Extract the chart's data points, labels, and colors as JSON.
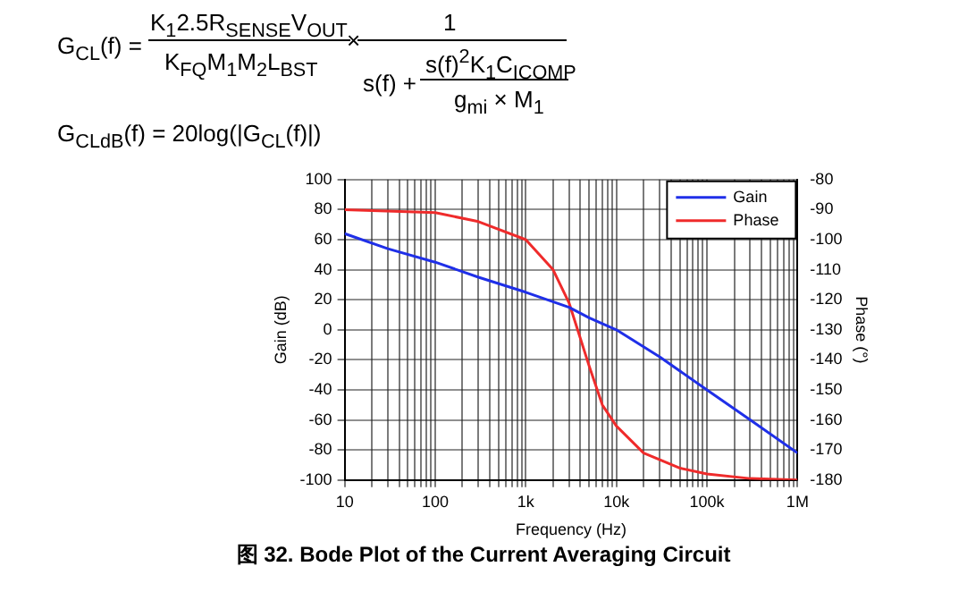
{
  "chart_data": {
    "type": "line",
    "title": "图 32. Bode Plot of the Current Averaging Circuit",
    "annotations": [
      "G$_{CL}$(f) =",
      "K$_{1}$2.5R$_{SENSE}$V$_{OUT}$",
      "K$_{FQ}$M$_{1}$M$_{2}$L$_{BST}$",
      "×",
      "1",
      "s(f) +",
      "s(f)$^{2}$K$_{1}$C$_{ICOMP}$",
      "g$_{mi}$ × M$_{1}$",
      "G$_{CLdB}$(f) = 20log(|G$_{CL}$(f)|)"
    ],
    "xlabel": "Frequency (Hz)",
    "ylabel": "Gain (dB)",
    "y2label": "Phase (°)",
    "log": "x",
    "grid": true,
    "legend": "top right",
    "xlim": [
      10,
      1000000
    ],
    "xticks": [
      10,
      {
        "value": 20,
        "label": null
      },
      {
        "value": 30,
        "label": null
      },
      {
        "value": 40,
        "label": null
      },
      {
        "value": 50,
        "label": null
      },
      {
        "value": 60,
        "label": null
      },
      {
        "value": 70,
        "label": null
      },
      {
        "value": 80,
        "label": null
      },
      {
        "value": 90,
        "label": null
      },
      100,
      {
        "value": 200,
        "label": null
      },
      {
        "value": 300,
        "label": null
      },
      {
        "value": 400,
        "label": null
      },
      {
        "value": 500,
        "label": null
      },
      {
        "value": 600,
        "label": null
      },
      {
        "value": 700,
        "label": null
      },
      {
        "value": 800,
        "label": null
      },
      {
        "value": 900,
        "label": null
      },
      {
        "value": 1000,
        "label": "1k"
      },
      {
        "value": 2000,
        "label": null
      },
      {
        "value": 3000,
        "label": null
      },
      {
        "value": 4000,
        "label": null
      },
      {
        "value": 5000,
        "label": null
      },
      {
        "value": 6000,
        "label": null
      },
      {
        "value": 7000,
        "label": null
      },
      {
        "value": 8000,
        "label": null
      },
      {
        "value": 9000,
        "label": null
      },
      {
        "value": 10000,
        "label": "10k"
      },
      {
        "value": 20000,
        "label": null
      },
      {
        "value": 30000,
        "label": null
      },
      {
        "value": 40000,
        "label": null
      },
      {
        "value": 50000,
        "label": null
      },
      {
        "value": 60000,
        "label": null
      },
      {
        "value": 70000,
        "label": null
      },
      {
        "value": 80000,
        "label": null
      },
      {
        "value": 90000,
        "label": null
      },
      {
        "value": 100000,
        "label": "100k"
      },
      {
        "value": 200000,
        "label": null
      },
      {
        "value": 300000,
        "label": null
      },
      {
        "value": 400000,
        "label": null
      },
      {
        "value": 500000,
        "label": null
      },
      {
        "value": 600000,
        "label": null
      },
      {
        "value": 700000,
        "label": null
      },
      {
        "value": 800000,
        "label": null
      },
      {
        "value": 900000,
        "label": null
      },
      {
        "value": 1000000,
        "label": "1M"
      }
    ],
    "ylim": [
      -100,
      100
    ],
    "yticks": [
      -100,
      -80,
      -60,
      -40,
      -20,
      0,
      20,
      40,
      60,
      80,
      100
    ],
    "y2lim": [
      -180,
      -80
    ],
    "y2ticks": [
      -180,
      -170,
      -160,
      -150,
      -140,
      -130,
      -120,
      -110,
      -100,
      -90,
      -80
    ],
    "series": [
      {
        "name": "Gain",
        "color": "#1f2fe8",
        "x": [
          10,
          30,
          100,
          300,
          1000,
          3000,
          5000,
          10000,
          30000,
          100000,
          300000,
          1000000
        ],
        "values": [
          64,
          54,
          45,
          35,
          25,
          15,
          8,
          0,
          -18,
          -40,
          -60,
          -82
        ]
      },
      {
        "name": "Phase",
        "color": "#ef2b2b",
        "axis": "y2",
        "x": [
          10,
          100,
          300,
          1000,
          2000,
          3000,
          5000,
          7000,
          10000,
          20000,
          50000,
          100000,
          300000,
          1000000
        ],
        "values": [
          -90,
          -91,
          -94,
          -100,
          -110,
          -121,
          -142,
          -155,
          -162,
          -171,
          -176,
          -178,
          -179.5,
          -180
        ]
      }
    ]
  }
}
